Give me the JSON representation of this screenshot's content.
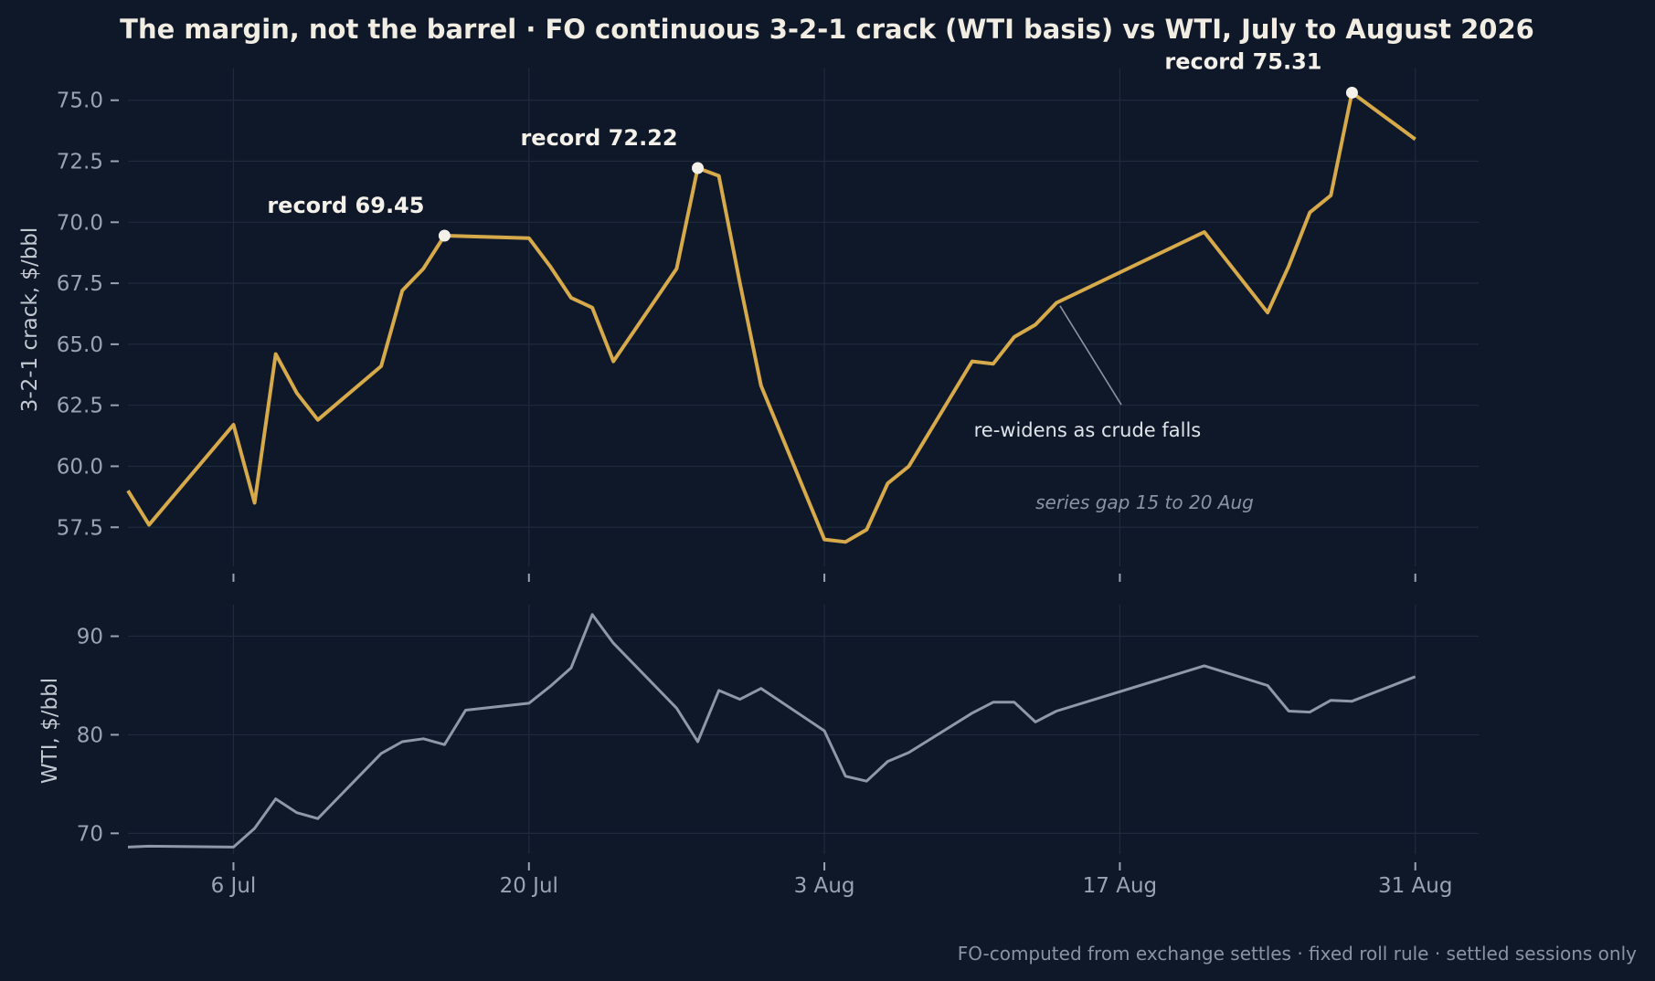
{
  "title": "The margin, not the barrel  ·  FO continuous 3-2-1 crack (WTI basis) vs WTI, July to August 2026",
  "footer": "FO-computed from exchange settles · fixed roll rule · settled sessions only",
  "colors": {
    "background": "#0e1829",
    "crack": "#d6a94b",
    "wti": "#8e98a8",
    "marker": "#f4f1ea",
    "annotation_line": "#8a93a2"
  },
  "chart_data": [
    {
      "type": "line",
      "panel": "top",
      "ylabel": "3-2-1 crack, $/bbl",
      "ylim": [
        55.9,
        76.3
      ],
      "xlim": [
        "2026-07-01",
        "2026-09-03"
      ],
      "yticks": [
        57.5,
        60.0,
        62.5,
        65.0,
        67.5,
        70.0,
        72.5,
        75.0
      ],
      "ytick_labels": [
        "57.5",
        "60.0",
        "62.5",
        "65.0",
        "67.5",
        "70.0",
        "72.5",
        "75.0"
      ],
      "grid": true,
      "series": [
        {
          "points": [
            [
              "2026-07-01",
              59.0
            ],
            [
              "2026-07-02",
              57.6
            ],
            [
              "2026-07-06",
              61.7
            ],
            [
              "2026-07-07",
              58.5
            ],
            [
              "2026-07-08",
              64.6
            ],
            [
              "2026-07-09",
              63.0
            ],
            [
              "2026-07-10",
              61.9
            ],
            [
              "2026-07-13",
              64.1
            ],
            [
              "2026-07-14",
              67.2
            ],
            [
              "2026-07-15",
              68.1
            ],
            [
              "2026-07-16",
              69.45
            ],
            [
              "2026-07-20",
              69.35
            ],
            [
              "2026-07-21",
              68.2
            ],
            [
              "2026-07-22",
              66.9
            ],
            [
              "2026-07-23",
              66.5
            ],
            [
              "2026-07-24",
              64.3
            ],
            [
              "2026-07-27",
              68.1
            ],
            [
              "2026-07-28",
              72.22
            ],
            [
              "2026-07-29",
              71.9
            ],
            [
              "2026-07-30",
              67.5
            ],
            [
              "2026-07-31",
              63.3
            ],
            [
              "2026-08-03",
              57.0
            ],
            [
              "2026-08-04",
              56.9
            ],
            [
              "2026-08-05",
              57.4
            ],
            [
              "2026-08-06",
              59.3
            ],
            [
              "2026-08-07",
              60.0
            ],
            [
              "2026-08-10",
              64.3
            ],
            [
              "2026-08-11",
              64.2
            ],
            [
              "2026-08-12",
              65.3
            ],
            [
              "2026-08-13",
              65.8
            ],
            [
              "2026-08-14",
              66.7
            ],
            [
              "2026-08-21",
              69.6
            ],
            [
              "2026-08-24",
              66.3
            ],
            [
              "2026-08-25",
              68.2
            ],
            [
              "2026-08-26",
              70.4
            ],
            [
              "2026-08-27",
              71.1
            ],
            [
              "2026-08-28",
              75.31
            ],
            [
              "2026-08-31",
              73.4
            ]
          ]
        }
      ],
      "records": [
        {
          "date": "2026-07-16",
          "value": 69.45,
          "label": "record 69.45"
        },
        {
          "date": "2026-07-28",
          "value": 72.22,
          "label": "record 72.22"
        },
        {
          "date": "2026-08-28",
          "value": 75.31,
          "label": "record 75.31"
        }
      ],
      "annotations": [
        {
          "text": "re-widens as crude falls",
          "date": "2026-08-12",
          "value": 61.7,
          "points_to": [
            "2026-08-12",
            66.2
          ]
        },
        {
          "text": "series gap 15 to 20 Aug",
          "date": "2026-08-18",
          "value": 58.6
        }
      ]
    },
    {
      "type": "line",
      "panel": "bottom",
      "ylabel": "WTI, $/bbl",
      "ylim": [
        67.9,
        93.2
      ],
      "xlim": [
        "2026-07-01",
        "2026-09-03"
      ],
      "yticks": [
        70,
        80,
        90
      ],
      "ytick_labels": [
        "70",
        "80",
        "90"
      ],
      "xticks": [
        "2026-07-06",
        "2026-07-20",
        "2026-08-03",
        "2026-08-17",
        "2026-08-31"
      ],
      "xtick_labels": [
        "6 Jul",
        "20 Jul",
        "3 Aug",
        "17 Aug",
        "31 Aug"
      ],
      "grid": true,
      "series": [
        {
          "points": [
            [
              "2026-07-01",
              68.6
            ],
            [
              "2026-07-02",
              68.7
            ],
            [
              "2026-07-06",
              68.6
            ],
            [
              "2026-07-07",
              70.5
            ],
            [
              "2026-07-08",
              73.5
            ],
            [
              "2026-07-09",
              72.1
            ],
            [
              "2026-07-10",
              71.5
            ],
            [
              "2026-07-13",
              78.1
            ],
            [
              "2026-07-14",
              79.3
            ],
            [
              "2026-07-15",
              79.6
            ],
            [
              "2026-07-16",
              79.0
            ],
            [
              "2026-07-17",
              82.5
            ],
            [
              "2026-07-20",
              83.2
            ],
            [
              "2026-07-21",
              84.9
            ],
            [
              "2026-07-22",
              86.8
            ],
            [
              "2026-07-23",
              92.2
            ],
            [
              "2026-07-24",
              89.3
            ],
            [
              "2026-07-27",
              82.7
            ],
            [
              "2026-07-28",
              79.3
            ],
            [
              "2026-07-29",
              84.5
            ],
            [
              "2026-07-30",
              83.6
            ],
            [
              "2026-07-31",
              84.7
            ],
            [
              "2026-08-03",
              80.4
            ],
            [
              "2026-08-04",
              75.8
            ],
            [
              "2026-08-05",
              75.3
            ],
            [
              "2026-08-06",
              77.3
            ],
            [
              "2026-08-07",
              78.2
            ],
            [
              "2026-08-10",
              82.2
            ],
            [
              "2026-08-11",
              83.3
            ],
            [
              "2026-08-12",
              83.3
            ],
            [
              "2026-08-13",
              81.3
            ],
            [
              "2026-08-14",
              82.4
            ],
            [
              "2026-08-21",
              87.0
            ],
            [
              "2026-08-24",
              85.0
            ],
            [
              "2026-08-25",
              82.4
            ],
            [
              "2026-08-26",
              82.3
            ],
            [
              "2026-08-27",
              83.5
            ],
            [
              "2026-08-28",
              83.4
            ],
            [
              "2026-08-31",
              85.9
            ]
          ]
        }
      ]
    }
  ]
}
